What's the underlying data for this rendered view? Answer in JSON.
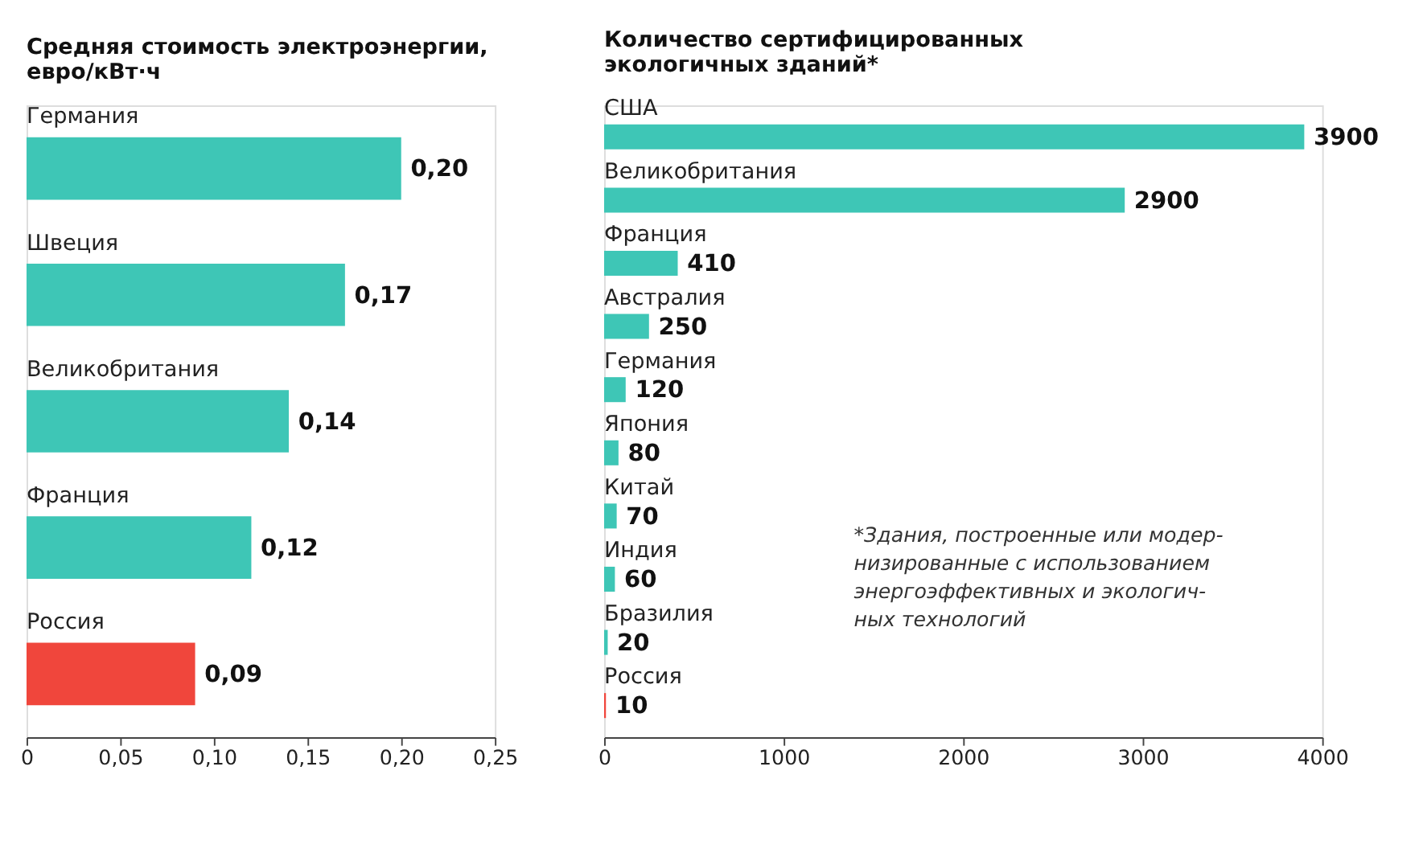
{
  "chart_data": [
    {
      "type": "bar",
      "orientation": "horizontal",
      "title": "Средняя стоимость электроэнергии,\nевро/кВт·ч",
      "categories": [
        "Германия",
        "Швеция",
        "Великобритания",
        "Франция",
        "Россия"
      ],
      "values": [
        0.2,
        0.17,
        0.14,
        0.12,
        0.09
      ],
      "colors": [
        "#3ec6b6",
        "#3ec6b6",
        "#3ec6b6",
        "#3ec6b6",
        "#f0463c"
      ],
      "value_labels": [
        "0,20",
        "0,17",
        "0,14",
        "0,12",
        "0,09"
      ],
      "xlim": [
        0,
        0.25
      ],
      "xticks": [
        0,
        {
          "value": 0.05,
          "label": "0,05"
        },
        {
          "value": 0.1,
          "label": "0,10"
        },
        {
          "value": 0.15,
          "label": "0,15"
        },
        {
          "value": 0.2,
          "label": "0,20"
        },
        {
          "value": 0.25,
          "label": "0,25"
        }
      ],
      "grid": false
    },
    {
      "type": "bar",
      "orientation": "horizontal",
      "title": "Количество сертифицированных\nэкологичных зданий*",
      "categories": [
        "США",
        "Великобритания",
        "Франция",
        "Австралия",
        "Германия",
        "Япония",
        "Китай",
        "Индия",
        "Бразилия",
        "Россия"
      ],
      "values": [
        3900,
        2900,
        410,
        250,
        120,
        80,
        70,
        60,
        20,
        10
      ],
      "colors": [
        "#3ec6b6",
        "#3ec6b6",
        "#3ec6b6",
        "#3ec6b6",
        "#3ec6b6",
        "#3ec6b6",
        "#3ec6b6",
        "#3ec6b6",
        "#3ec6b6",
        "#f0463c"
      ],
      "data_labels": true,
      "xlim": [
        0,
        4000
      ],
      "xticks": [
        0,
        1000,
        2000,
        3000,
        4000
      ],
      "grid": false,
      "annotations": [
        "*Здания, построенные или модер-\nнизированные с использованием\nэнергоэффективных и экологич-\nных технологий"
      ]
    }
  ]
}
